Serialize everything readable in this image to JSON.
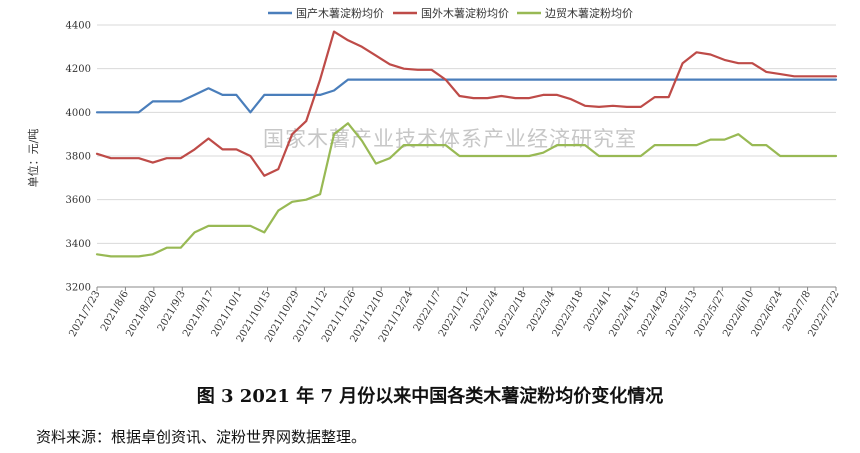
{
  "chart_data": {
    "type": "line",
    "ylabel": "单位：元/吨",
    "ylim": [
      3200,
      4400
    ],
    "yticks": [
      3200,
      3400,
      3600,
      3800,
      4000,
      4200,
      4400
    ],
    "xtick_labels": [
      "2021/7/23",
      "2021/8/6",
      "2021/8/20",
      "2021/9/3",
      "2021/9/17",
      "2021/10/1",
      "2021/10/15",
      "2021/10/29",
      "2021/11/12",
      "2021/11/26",
      "2021/12/10",
      "2021/12/24",
      "2022/1/7",
      "2022/1/21",
      "2022/2/4",
      "2022/2/18",
      "2022/3/4",
      "2022/3/18",
      "2022/4/1",
      "2022/4/15",
      "2022/4/29",
      "2022/5/13",
      "2022/5/27",
      "2022/6/10",
      "2022/6/24",
      "2022/7/8",
      "2022/7/22"
    ],
    "legend_position": "top",
    "grid": "horizontal",
    "series": [
      {
        "name": "国产木薯淀粉均价",
        "color": "#4a7ebb",
        "values": [
          4000,
          4000,
          4000,
          4000,
          4050,
          4050,
          4050,
          4080,
          4110,
          4080,
          4080,
          4000,
          4080,
          4080,
          4080,
          4080,
          4080,
          4100,
          4150,
          4150,
          4150,
          4150,
          4150,
          4150,
          4150,
          4150,
          4150,
          4150,
          4150,
          4150,
          4150,
          4150,
          4150,
          4150,
          4150,
          4150,
          4150,
          4150,
          4150,
          4150,
          4150,
          4150,
          4150,
          4150,
          4150,
          4150,
          4150,
          4150,
          4150,
          4150,
          4150,
          4150,
          4150,
          4150
        ]
      },
      {
        "name": "国外木薯淀粉均价",
        "color": "#be4b48",
        "values": [
          3810,
          3790,
          3790,
          3790,
          3770,
          3790,
          3790,
          3830,
          3880,
          3830,
          3830,
          3800,
          3710,
          3740,
          3900,
          3960,
          4150,
          4370,
          4330,
          4300,
          4260,
          4220,
          4200,
          4195,
          4195,
          4150,
          4075,
          4065,
          4065,
          4075,
          4065,
          4065,
          4080,
          4080,
          4060,
          4030,
          4025,
          4030,
          4025,
          4025,
          4070,
          4070,
          4225,
          4275,
          4265,
          4240,
          4225,
          4225,
          4185,
          4175,
          4165,
          4165,
          4165,
          4165
        ]
      },
      {
        "name": "边贸木薯淀粉均价",
        "color": "#98b954",
        "values": [
          3350,
          3340,
          3340,
          3340,
          3350,
          3380,
          3380,
          3450,
          3480,
          3480,
          3480,
          3480,
          3450,
          3550,
          3590,
          3600,
          3625,
          3900,
          3950,
          3870,
          3765,
          3790,
          3850,
          3850,
          3850,
          3850,
          3800,
          3800,
          3800,
          3800,
          3800,
          3800,
          3815,
          3850,
          3850,
          3850,
          3800,
          3800,
          3800,
          3800,
          3850,
          3850,
          3850,
          3850,
          3875,
          3875,
          3900,
          3850,
          3850,
          3800,
          3800,
          3800,
          3800,
          3800
        ]
      }
    ]
  },
  "watermark": "国家木薯产业技术体系产业经济研究室",
  "caption": "图 3   2021 年 7 月份以来中国各类木薯淀粉均价变化情况",
  "source": "资料来源：根据卓创资讯、淀粉世界网数据整理。"
}
